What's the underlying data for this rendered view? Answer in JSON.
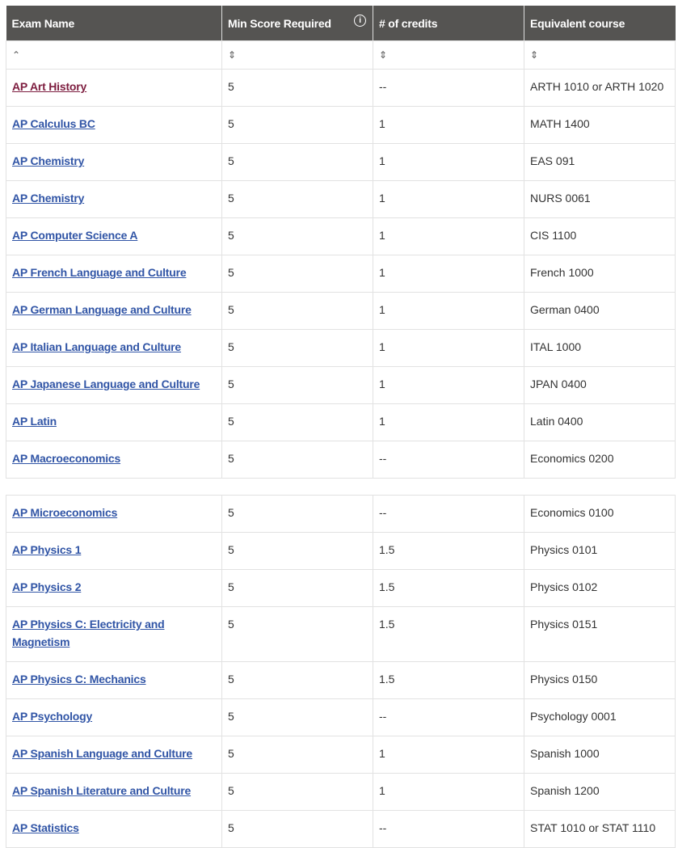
{
  "headers": [
    "Exam Name",
    "Min Score Required",
    "# of credits",
    "Equivalent course"
  ],
  "icons": {
    "min_score_info": "info-icon",
    "sort_asc": "chevron-up-icon",
    "sort_both": "sort-icon"
  },
  "colors": {
    "header_bg": "#555452",
    "link": "#3155a6",
    "visited_link": "#7d1d3f"
  },
  "table1_rows": [
    [
      "AP Art History",
      "5",
      "--",
      "ARTH 1010 or ARTH 1020"
    ],
    [
      "AP Calculus BC",
      "5",
      "1",
      "MATH 1400"
    ],
    [
      "AP Chemistry",
      "5",
      "1",
      "EAS 091"
    ],
    [
      "AP Chemistry",
      "5",
      "1",
      "NURS 0061"
    ],
    [
      "AP Computer Science A",
      "5",
      "1",
      "CIS 1100"
    ],
    [
      "AP French Language and Culture",
      "5",
      "1",
      "French 1000"
    ],
    [
      "AP German Language and Culture",
      "5",
      "1",
      "German 0400"
    ],
    [
      "AP Italian Language and Culture",
      "5",
      "1",
      "ITAL 1000"
    ],
    [
      "AP Japanese Language and Culture",
      "5",
      "1",
      "JPAN 0400"
    ],
    [
      "AP Latin",
      "5",
      "1",
      "Latin 0400"
    ],
    [
      "AP Macroeconomics",
      "5",
      "--",
      "Economics 0200"
    ]
  ],
  "table2_rows": [
    [
      "AP Microeconomics",
      "5",
      "--",
      "Economics 0100"
    ],
    [
      "AP Physics 1",
      "5",
      "1.5",
      "Physics 0101"
    ],
    [
      "AP Physics 2",
      "5",
      "1.5",
      "Physics 0102"
    ],
    [
      "AP Physics C: Electricity and Magnetism",
      "5",
      "1.5",
      "Physics 0151"
    ],
    [
      "AP Physics C: Mechanics",
      "5",
      "1.5",
      "Physics 0150"
    ],
    [
      "AP Psychology",
      "5",
      "--",
      "Psychology 0001"
    ],
    [
      "AP Spanish Language and Culture",
      "5",
      "1",
      "Spanish 1000"
    ],
    [
      "AP Spanish Literature and Culture",
      "5",
      "1",
      "Spanish 1200"
    ],
    [
      "AP Statistics",
      "5",
      "--",
      "STAT 1010 or STAT 1110"
    ]
  ]
}
